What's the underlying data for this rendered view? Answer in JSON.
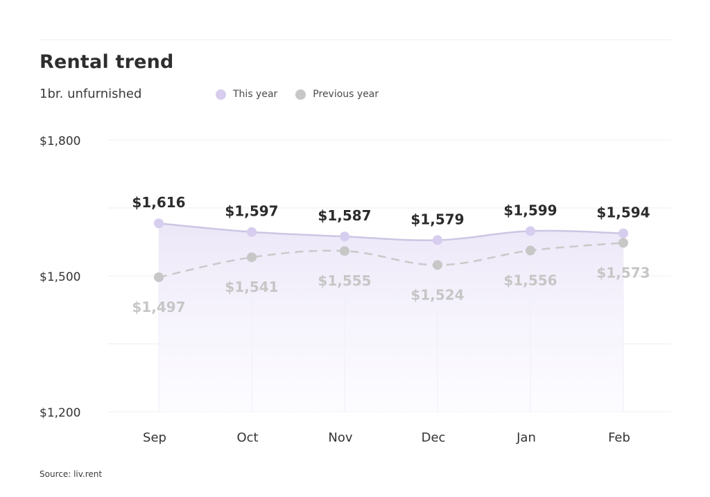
{
  "title": "Rental trend",
  "subtitle": "1br. unfurnished",
  "source": "Source: liv.rent",
  "chart_data": {
    "type": "line",
    "categories": [
      "Sep",
      "Oct",
      "Nov",
      "Dec",
      "Jan",
      "Feb"
    ],
    "series": [
      {
        "name": "This year",
        "values": [
          1616,
          1597,
          1587,
          1579,
          1599,
          1594
        ],
        "labels": [
          "$1,616",
          "$1,597",
          "$1,587",
          "$1,579",
          "$1,599",
          "$1,594"
        ],
        "color": "#d7cdee",
        "line_color": "#cdc5e3",
        "label_color": "#2b2b2b",
        "style": "solid-area"
      },
      {
        "name": "Previous year",
        "values": [
          1497,
          1541,
          1555,
          1524,
          1556,
          1573
        ],
        "labels": [
          "$1,497",
          "$1,541",
          "$1,555",
          "$1,524",
          "$1,556",
          "$1,573"
        ],
        "color": "#c7c7c7",
        "line_color": "#c9c9c9",
        "label_color": "#c6c6c6",
        "style": "dashed"
      }
    ],
    "ylim": [
      1200,
      1800
    ],
    "yticks": [
      1200,
      1500,
      1800
    ],
    "ytick_labels": [
      "$1,200",
      "$1,500",
      "$1,800"
    ],
    "gridlines": [
      1200,
      1350,
      1500,
      1650,
      1800
    ],
    "grid": true,
    "legend": "top",
    "xlabel": "",
    "ylabel": ""
  }
}
